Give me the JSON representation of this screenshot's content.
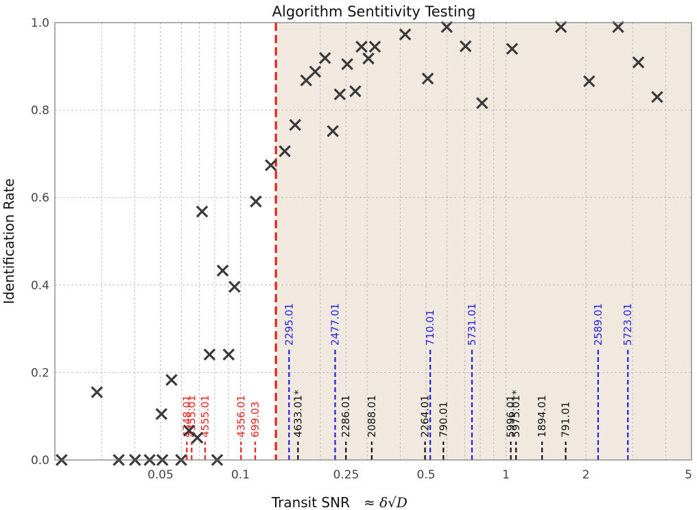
{
  "chart_data": {
    "type": "scatter",
    "title": "Algorithm Sentitivity Testing",
    "xlabel": "Transit SNR",
    "xlabel_math": "≈ δ√D",
    "ylabel": "Identification Rate",
    "xscale": "log",
    "xlim": [
      0.02,
      5
    ],
    "ylim": [
      0,
      1
    ],
    "x_ticks": [
      {
        "value": 0.05,
        "label": "0.05"
      },
      {
        "value": 0.1,
        "label": "0.1"
      },
      {
        "value": 0.25,
        "label": "0.25"
      },
      {
        "value": 0.5,
        "label": "0.5"
      },
      {
        "value": 1,
        "label": "1"
      },
      {
        "value": 2,
        "label": "2"
      },
      {
        "value": 5,
        "label": "5"
      }
    ],
    "y_ticks": [
      {
        "value": 0.0,
        "label": "0.0"
      },
      {
        "value": 0.2,
        "label": "0.2"
      },
      {
        "value": 0.4,
        "label": "0.4"
      },
      {
        "value": 0.6,
        "label": "0.6"
      },
      {
        "value": 0.8,
        "label": "0.8"
      },
      {
        "value": 1.0,
        "label": "1.0"
      }
    ],
    "threshold": {
      "x": 0.136,
      "color": "#e8221b",
      "shade_color": "#f1e9e0"
    },
    "series": [
      {
        "name": "injection recovery",
        "marker": "x",
        "color": "#3a3a3a",
        "points": [
          [
            0.0212,
            0.0
          ],
          [
            0.0288,
            0.155
          ],
          [
            0.0348,
            0.0
          ],
          [
            0.0401,
            0.0
          ],
          [
            0.0455,
            0.0
          ],
          [
            0.0508,
            0.0
          ],
          [
            0.0504,
            0.105
          ],
          [
            0.055,
            0.183
          ],
          [
            0.0598,
            0.0
          ],
          [
            0.0641,
            0.067
          ],
          [
            0.0688,
            0.051
          ],
          [
            0.0717,
            0.568
          ],
          [
            0.0765,
            0.241
          ],
          [
            0.0817,
            0.0
          ],
          [
            0.0857,
            0.433
          ],
          [
            0.0903,
            0.241
          ],
          [
            0.095,
            0.396
          ],
          [
            0.1143,
            0.591
          ],
          [
            0.1302,
            0.674
          ],
          [
            0.1469,
            0.706
          ],
          [
            0.1607,
            0.766
          ],
          [
            0.1768,
            0.868
          ],
          [
            0.1912,
            0.888
          ],
          [
            0.2082,
            0.919
          ],
          [
            0.2228,
            0.752
          ],
          [
            0.2368,
            0.836
          ],
          [
            0.2525,
            0.905
          ],
          [
            0.2708,
            0.843
          ],
          [
            0.2858,
            0.945
          ],
          [
            0.3034,
            0.918
          ],
          [
            0.3209,
            0.945
          ],
          [
            0.4172,
            0.973
          ],
          [
            0.5077,
            0.872
          ],
          [
            0.5986,
            0.99
          ],
          [
            0.7046,
            0.946
          ],
          [
            0.8132,
            0.816
          ],
          [
            1.0549,
            0.94
          ],
          [
            1.6111,
            0.99
          ],
          [
            2.0582,
            0.866
          ],
          [
            2.6465,
            0.99
          ],
          [
            3.1542,
            0.909
          ],
          [
            3.7126,
            0.83
          ]
        ]
      }
    ],
    "annotations": [
      {
        "label": "4355.01",
        "x": 0.0655,
        "y": 0.042,
        "color": "#e8221b"
      },
      {
        "label": "4348.01",
        "x": 0.0628,
        "y": 0.042,
        "color": "#e8221b"
      },
      {
        "label": "4555.01",
        "x": 0.0736,
        "y": 0.042,
        "color": "#e8221b"
      },
      {
        "label": "4356.01",
        "x": 0.1005,
        "y": 0.042,
        "color": "#e8221b"
      },
      {
        "label": "699.03",
        "x": 0.1137,
        "y": 0.042,
        "color": "#e8221b"
      },
      {
        "label": "2295.01",
        "x": 0.1524,
        "y": 0.252,
        "color": "#1f1fe0"
      },
      {
        "label": "4633.01*",
        "x": 0.1647,
        "y": 0.042,
        "color": "#111111"
      },
      {
        "label": "2477.01",
        "x": 0.2273,
        "y": 0.252,
        "color": "#1f1fe0"
      },
      {
        "label": "2286.01",
        "x": 0.2496,
        "y": 0.042,
        "color": "#111111"
      },
      {
        "label": "2088.01",
        "x": 0.3123,
        "y": 0.042,
        "color": "#111111"
      },
      {
        "label": "2264.01",
        "x": 0.4956,
        "y": 0.042,
        "color": "#111111"
      },
      {
        "label": "710.01",
        "x": 0.5186,
        "y": 0.252,
        "color": "#1f1fe0"
      },
      {
        "label": "790.01",
        "x": 0.5813,
        "y": 0.042,
        "color": "#111111"
      },
      {
        "label": "5731.01",
        "x": 0.7448,
        "y": 0.252,
        "color": "#1f1fe0"
      },
      {
        "label": "5996.01",
        "x": 1.0431,
        "y": 0.042,
        "color": "#111111"
      },
      {
        "label": "5975.01*",
        "x": 1.0915,
        "y": 0.042,
        "color": "#111111"
      },
      {
        "label": "1894.01",
        "x": 1.3681,
        "y": 0.042,
        "color": "#111111"
      },
      {
        "label": "791.01",
        "x": 1.6789,
        "y": 0.042,
        "color": "#111111"
      },
      {
        "label": "2589.01",
        "x": 2.2241,
        "y": 0.252,
        "color": "#1f1fe0"
      },
      {
        "label": "5723.01",
        "x": 2.8793,
        "y": 0.252,
        "color": "#1f1fe0"
      }
    ]
  }
}
